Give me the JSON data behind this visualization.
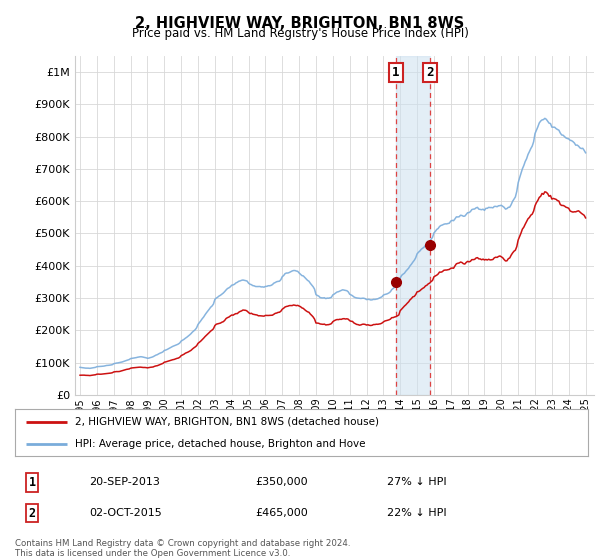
{
  "title": "2, HIGHVIEW WAY, BRIGHTON, BN1 8WS",
  "subtitle": "Price paid vs. HM Land Registry's House Price Index (HPI)",
  "hpi_color": "#7aacdb",
  "price_color": "#cc1111",
  "background_color": "#ffffff",
  "grid_color": "#d8d8d8",
  "ylim": [
    0,
    1050000
  ],
  "yticks": [
    0,
    100000,
    200000,
    300000,
    400000,
    500000,
    600000,
    700000,
    800000,
    900000,
    1000000
  ],
  "ytick_labels": [
    "£0",
    "£100K",
    "£200K",
    "£300K",
    "£400K",
    "£500K",
    "£600K",
    "£700K",
    "£800K",
    "£900K",
    "£1M"
  ],
  "p1_year": 2013.75,
  "p1_price": 350000,
  "p2_year": 2015.75,
  "p2_price": 465000,
  "legend_entries": [
    "2, HIGHVIEW WAY, BRIGHTON, BN1 8WS (detached house)",
    "HPI: Average price, detached house, Brighton and Hove"
  ],
  "table_rows": [
    {
      "num": "1",
      "date": "20-SEP-2013",
      "price": "£350,000",
      "hpi": "27% ↓ HPI"
    },
    {
      "num": "2",
      "date": "02-OCT-2015",
      "price": "£465,000",
      "hpi": "22% ↓ HPI"
    }
  ],
  "footer": "Contains HM Land Registry data © Crown copyright and database right 2024.\nThis data is licensed under the Open Government Licence v3.0."
}
